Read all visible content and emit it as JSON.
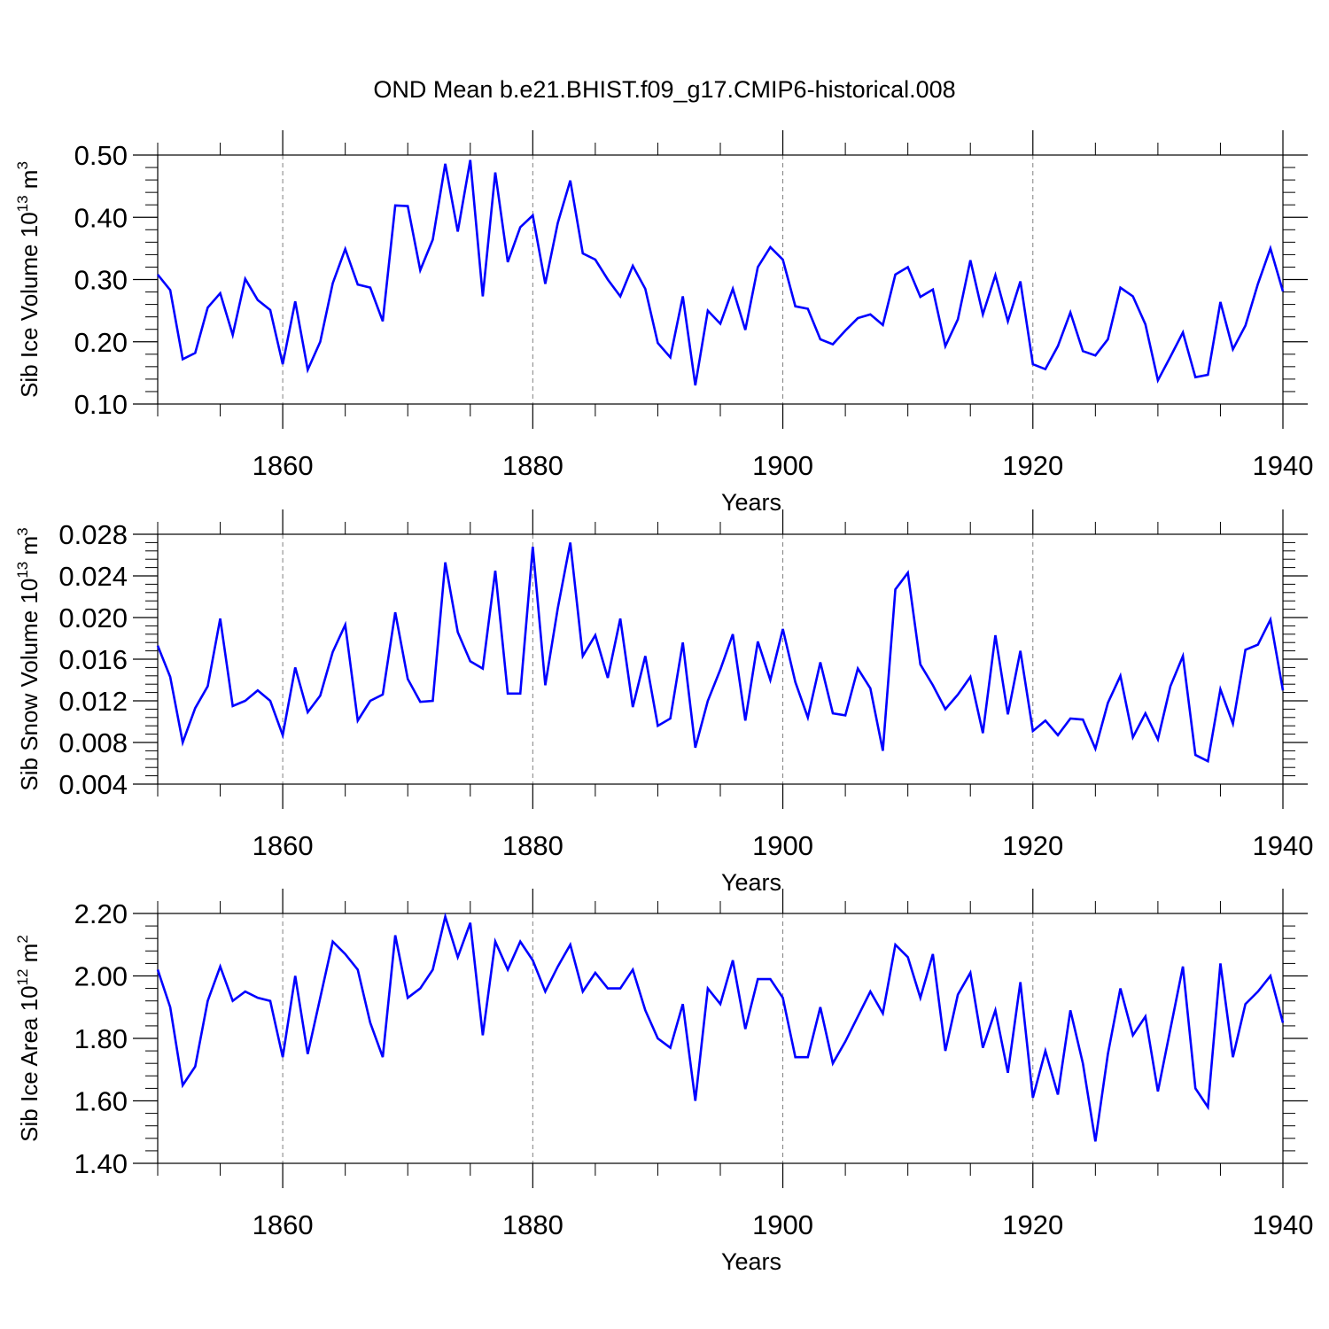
{
  "title": "OND Mean b.e21.BHIST.f09_g17.CMIP6-historical.008",
  "line_color": "#0000ff",
  "chart_data": [
    {
      "type": "line",
      "xlabel": "Years",
      "ylabel_main": "Sib Ice Volume 10",
      "ylabel_exp": "13",
      "ylabel_unit": " m",
      "ylabel_unit_exp": "3",
      "xlim": [
        1850,
        1940
      ],
      "ylim": [
        0.1,
        0.5
      ],
      "yticks": [
        0.1,
        0.2,
        0.3,
        0.4,
        0.5
      ],
      "ytick_labels": [
        "0.10",
        "0.20",
        "0.30",
        "0.40",
        "0.50"
      ],
      "xticks": [
        1860,
        1880,
        1900,
        1920,
        1940
      ],
      "xtick_labels": [
        "1860",
        "1880",
        "1900",
        "1920",
        "1940"
      ],
      "grid_x": [
        1860,
        1880,
        1900,
        1920
      ],
      "series": [
        {
          "name": "Sib Ice Volume",
          "x_start": 1850,
          "values": [
            0.308,
            0.283,
            0.172,
            0.182,
            0.255,
            0.278,
            0.211,
            0.301,
            0.267,
            0.251,
            0.164,
            0.265,
            0.155,
            0.2,
            0.294,
            0.349,
            0.292,
            0.287,
            0.233,
            0.419,
            0.418,
            0.315,
            0.364,
            0.486,
            0.377,
            0.492,
            0.273,
            0.472,
            0.328,
            0.384,
            0.403,
            0.293,
            0.391,
            0.459,
            0.342,
            0.332,
            0.3,
            0.273,
            0.322,
            0.285,
            0.198,
            0.175,
            0.273,
            0.13,
            0.25,
            0.229,
            0.285,
            0.219,
            0.32,
            0.352,
            0.332,
            0.257,
            0.253,
            0.204,
            0.196,
            0.218,
            0.238,
            0.244,
            0.227,
            0.308,
            0.32,
            0.272,
            0.284,
            0.193,
            0.236,
            0.331,
            0.244,
            0.307,
            0.233,
            0.297,
            0.164,
            0.156,
            0.193,
            0.247,
            0.185,
            0.178,
            0.204,
            0.287,
            0.273,
            0.228,
            0.138,
            0.176,
            0.215,
            0.143,
            0.147,
            0.264,
            0.188,
            0.226,
            0.293,
            0.35,
            0.281
          ]
        }
      ]
    },
    {
      "type": "line",
      "xlabel": "Years",
      "ylabel_main": "Sib Snow Volume 10",
      "ylabel_exp": "13",
      "ylabel_unit": " m",
      "ylabel_unit_exp": "3",
      "xlim": [
        1850,
        1940
      ],
      "ylim": [
        0.004,
        0.028
      ],
      "yticks": [
        0.004,
        0.008,
        0.012,
        0.016,
        0.02,
        0.024,
        0.028
      ],
      "ytick_labels": [
        "0.004",
        "0.008",
        "0.012",
        "0.016",
        "0.020",
        "0.024",
        "0.028"
      ],
      "xticks": [
        1860,
        1880,
        1900,
        1920,
        1940
      ],
      "xtick_labels": [
        "1860",
        "1880",
        "1900",
        "1920",
        "1940"
      ],
      "grid_x": [
        1860,
        1880,
        1900,
        1920
      ],
      "series": [
        {
          "name": "Sib Snow Volume",
          "x_start": 1850,
          "values": [
            0.0173,
            0.0143,
            0.008,
            0.0113,
            0.0134,
            0.0199,
            0.0115,
            0.012,
            0.013,
            0.012,
            0.0087,
            0.0152,
            0.0109,
            0.0125,
            0.0167,
            0.0193,
            0.0101,
            0.012,
            0.0126,
            0.0205,
            0.0141,
            0.0119,
            0.012,
            0.0253,
            0.0186,
            0.0158,
            0.0151,
            0.0245,
            0.0127,
            0.0127,
            0.0268,
            0.0135,
            0.0209,
            0.0272,
            0.0163,
            0.0183,
            0.0142,
            0.0199,
            0.0114,
            0.0163,
            0.0096,
            0.0103,
            0.0176,
            0.0075,
            0.012,
            0.015,
            0.0184,
            0.0101,
            0.0177,
            0.014,
            0.0189,
            0.0138,
            0.0104,
            0.0157,
            0.0108,
            0.0106,
            0.0151,
            0.0132,
            0.0072,
            0.0227,
            0.0243,
            0.0155,
            0.0135,
            0.0112,
            0.0126,
            0.0143,
            0.0089,
            0.0183,
            0.0107,
            0.0168,
            0.0091,
            0.0101,
            0.0087,
            0.0103,
            0.0102,
            0.0074,
            0.0118,
            0.0144,
            0.0085,
            0.0108,
            0.0083,
            0.0134,
            0.0163,
            0.0068,
            0.0062,
            0.0131,
            0.0098,
            0.0169,
            0.0174,
            0.0198,
            0.013
          ]
        }
      ]
    },
    {
      "type": "line",
      "xlabel": "Years",
      "ylabel_main": "Sib Ice Area 10",
      "ylabel_exp": "12",
      "ylabel_unit": " m",
      "ylabel_unit_exp": "2",
      "xlim": [
        1850,
        1940
      ],
      "ylim": [
        1.4,
        2.2
      ],
      "yticks": [
        1.4,
        1.6,
        1.8,
        2.0,
        2.2
      ],
      "ytick_labels": [
        "1.40",
        "1.60",
        "1.80",
        "2.00",
        "2.20"
      ],
      "xticks": [
        1860,
        1880,
        1900,
        1920,
        1940
      ],
      "xtick_labels": [
        "1860",
        "1880",
        "1900",
        "1920",
        "1940"
      ],
      "grid_x": [
        1860,
        1880,
        1900,
        1920
      ],
      "series": [
        {
          "name": "Sib Ice Area",
          "x_start": 1850,
          "values": [
            2.02,
            1.9,
            1.65,
            1.71,
            1.92,
            2.03,
            1.92,
            1.95,
            1.93,
            1.92,
            1.74,
            2.0,
            1.75,
            1.93,
            2.11,
            2.07,
            2.02,
            1.85,
            1.74,
            2.13,
            1.93,
            1.96,
            2.02,
            2.19,
            2.06,
            2.17,
            1.81,
            2.11,
            2.02,
            2.11,
            2.05,
            1.95,
            2.03,
            2.1,
            1.95,
            2.01,
            1.96,
            1.96,
            2.02,
            1.89,
            1.8,
            1.77,
            1.91,
            1.6,
            1.96,
            1.91,
            2.05,
            1.83,
            1.99,
            1.99,
            1.93,
            1.74,
            1.74,
            1.9,
            1.72,
            1.79,
            1.87,
            1.95,
            1.88,
            2.1,
            2.06,
            1.93,
            2.07,
            1.76,
            1.94,
            2.01,
            1.77,
            1.89,
            1.69,
            1.98,
            1.61,
            1.76,
            1.62,
            1.89,
            1.72,
            1.47,
            1.75,
            1.96,
            1.81,
            1.87,
            1.63,
            1.83,
            2.03,
            1.64,
            1.58,
            2.04,
            1.74,
            1.91,
            1.95,
            2.0,
            1.85
          ]
        }
      ]
    }
  ]
}
